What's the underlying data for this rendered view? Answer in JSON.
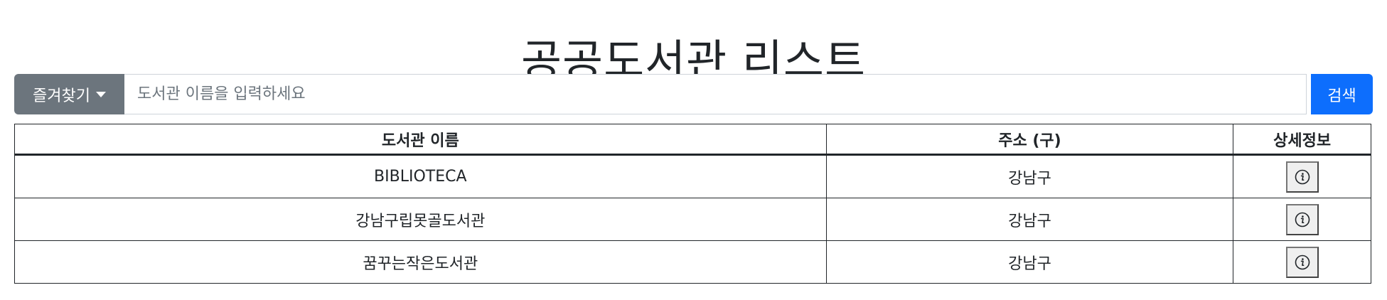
{
  "page": {
    "title": "공공도서관 리스트"
  },
  "search": {
    "favorites_label": "즐겨찾기",
    "placeholder": "도서관 이름을 입력하세요",
    "value": "",
    "search_label": "검색"
  },
  "table": {
    "headers": {
      "name": "도서관 이름",
      "address": "주소 (구)",
      "detail": "상세정보"
    },
    "rows": [
      {
        "name": "BIBLIOTECA",
        "address": "강남구",
        "detail_icon": "info-icon"
      },
      {
        "name": "강남구립못골도서관",
        "address": "강남구",
        "detail_icon": "info-icon"
      },
      {
        "name": "꿈꾸는작은도서관",
        "address": "강남구",
        "detail_icon": "info-icon"
      }
    ]
  },
  "colors": {
    "favorites_button": "#6c757d",
    "search_button": "#0d6efd",
    "text": "#212529"
  }
}
